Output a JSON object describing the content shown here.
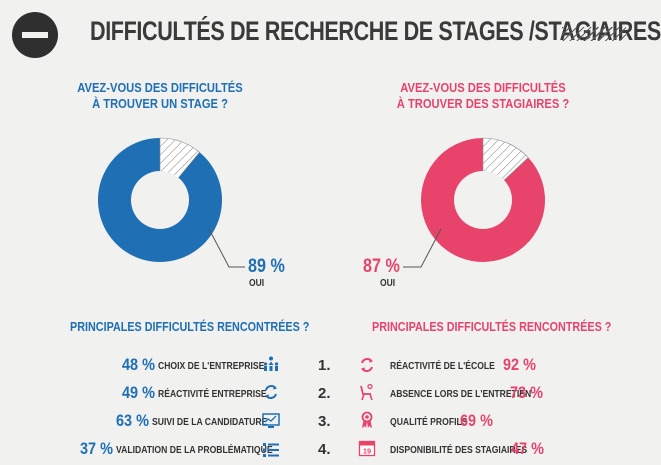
{
  "header": {
    "title": "DIFFICULTÉS DE RECHERCHE DE STAGES /STAGIAIRES"
  },
  "left_panel": {
    "question_line1": "AVEZ-VOUS DES DIFFICULTÉS",
    "question_line2": "À TROUVER UN STAGE ?",
    "percent_label": "89 %",
    "answer_label": "OUI",
    "percent_value": 89,
    "color": "#1e6fb4",
    "section_title": "PRINCIPALES DIFFICULTÉS RENCONTRÉES ?",
    "items": [
      {
        "pct": "48 %",
        "label": "CHOIX DE L'ENTREPRISE",
        "icon": "people-choice-icon"
      },
      {
        "pct": "49 %",
        "label": "RÉACTIVITÉ ENTREPRISE",
        "icon": "refresh-icon"
      },
      {
        "pct": "63 %",
        "label": "SUIVI DE LA CANDIDATURE",
        "icon": "monitor-chart-icon"
      },
      {
        "pct": "37 %",
        "label": "VALIDATION DE LA PROBLÉMATIQUE",
        "icon": "checklist-icon"
      }
    ]
  },
  "right_panel": {
    "question_line1": "AVEZ-VOUS DES DIFFICULTÉS",
    "question_line2": "À TROUVER DES STAGIAIRES ?",
    "percent_label": "87 %",
    "answer_label": "OUI",
    "percent_value": 87,
    "color": "#e8436a",
    "section_title": "PRINCIPALES DIFFICULTÉS RENCONTRÉES ?",
    "items": [
      {
        "rank": "1.",
        "pct": "92 %",
        "label": "RÉACTIVITÉ DE L'ÉCOLE",
        "icon": "refresh-icon"
      },
      {
        "rank": "2.",
        "pct": "73 %",
        "label": "ABSENCE LORS DE L'ENTRETIEN",
        "icon": "empty-chair-icon"
      },
      {
        "rank": "3.",
        "pct": "69 %",
        "label": "QUALITÉ PROFILS",
        "icon": "award-ribbon-icon"
      },
      {
        "rank": "4.",
        "pct": "47 %",
        "label": "DISPONIBILITÉ DES STAGIAIRES",
        "icon": "calendar-icon",
        "calendar_day": "19"
      }
    ]
  }
}
